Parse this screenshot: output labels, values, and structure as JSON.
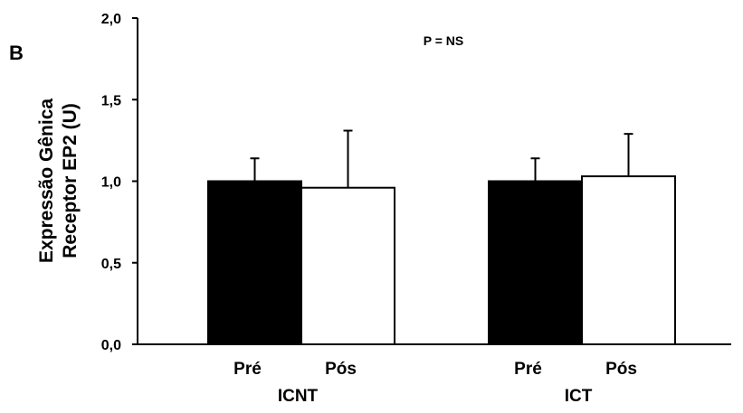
{
  "panel_label": "B",
  "annotation": "P = NS",
  "chart_data": {
    "type": "bar",
    "ylabel_lines": [
      "Expressão Gênica",
      "Receptor EP2 (U)"
    ],
    "xlabel": "",
    "ylim": [
      0,
      2.0
    ],
    "yticks": [
      0,
      0.5,
      1.0,
      1.5,
      2.0
    ],
    "ytick_labels": [
      "0,0",
      "0,5",
      "1,0",
      "1,5",
      "2,0"
    ],
    "grid": false,
    "legend": "none",
    "groups": [
      {
        "name": "ICNT",
        "bars": [
          {
            "label": "Pré",
            "value": 1.0,
            "error": 0.14,
            "fill": "#000000"
          },
          {
            "label": "Pós",
            "value": 0.96,
            "error": 0.35,
            "fill": "#ffffff"
          }
        ]
      },
      {
        "name": "ICT",
        "bars": [
          {
            "label": "Pré",
            "value": 1.0,
            "error": 0.14,
            "fill": "#000000"
          },
          {
            "label": "Pós",
            "value": 1.03,
            "error": 0.26,
            "fill": "#ffffff"
          }
        ]
      }
    ]
  }
}
